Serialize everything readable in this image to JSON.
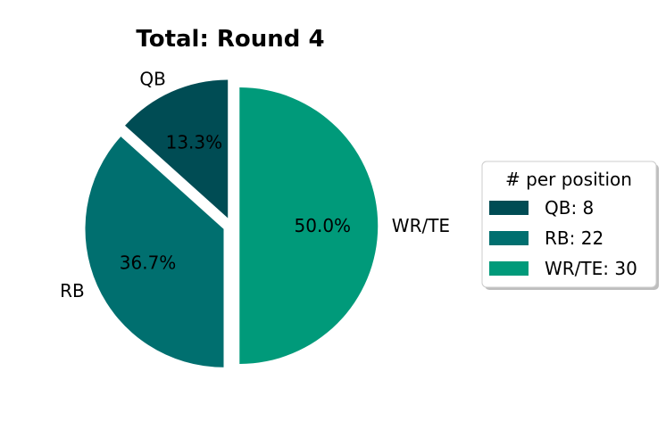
{
  "chart_data": {
    "type": "pie",
    "title": "Total: Round 4",
    "categories": [
      "QB",
      "RB",
      "WR/TE"
    ],
    "values": [
      8,
      22,
      30
    ],
    "percent_labels": [
      "13.3%",
      "36.7%",
      "50.0%"
    ],
    "colors": [
      "#004c54",
      "#006f6f",
      "#009a7a"
    ],
    "explode": true,
    "start_angle_deg": 90,
    "direction": "counterclockwise",
    "legend": {
      "title": "# per position",
      "entries": [
        "QB: 8",
        "RB: 22",
        "WR/TE: 30"
      ],
      "placement": "right"
    }
  }
}
